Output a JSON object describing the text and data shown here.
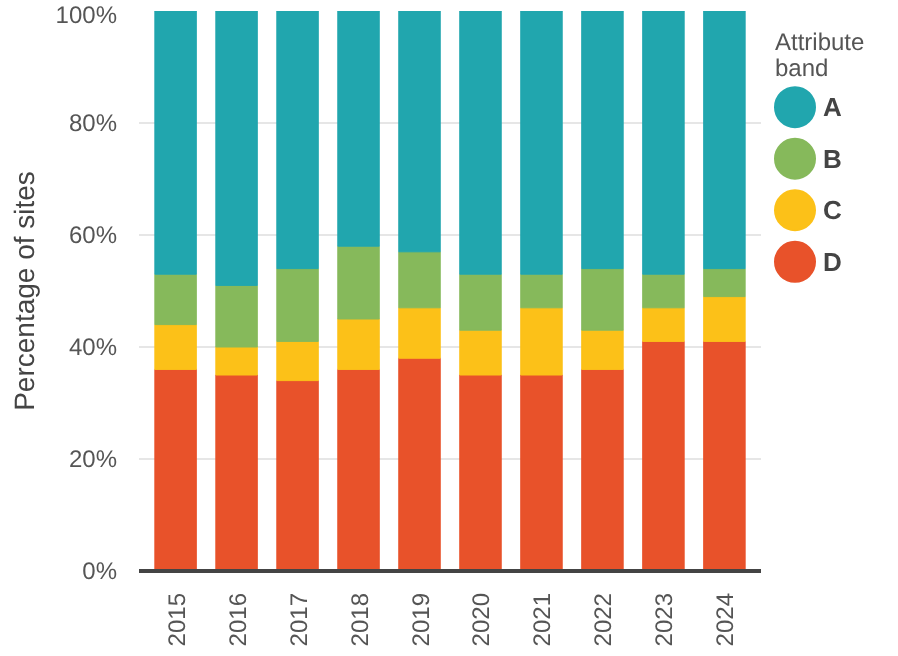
{
  "chart_data": {
    "type": "bar",
    "stacked": true,
    "ylabel": "Percentage of sites",
    "legend_title": "Attribute band",
    "legend": "top right",
    "grid": "y",
    "categories": [
      "2015",
      "2016",
      "2017",
      "2018",
      "2019",
      "2020",
      "2021",
      "2022",
      "2023",
      "2024"
    ],
    "ylim": [
      0,
      100
    ],
    "yticks": [
      {
        "value": 0,
        "label": "0%"
      },
      {
        "value": 20,
        "label": "20%"
      },
      {
        "value": 40,
        "label": "40%"
      },
      {
        "value": 60,
        "label": "60%"
      },
      {
        "value": 80,
        "label": "80%"
      },
      {
        "value": 100,
        "label": "100%"
      }
    ],
    "series": [
      {
        "name": "D",
        "color": "#e8522a",
        "values": [
          36,
          35,
          34,
          36,
          38,
          35,
          35,
          36,
          41,
          41
        ]
      },
      {
        "name": "C",
        "color": "#fcc118",
        "values": [
          8,
          5,
          7,
          9,
          9,
          8,
          12,
          7,
          6,
          8
        ]
      },
      {
        "name": "B",
        "color": "#86b95b",
        "values": [
          9,
          11,
          13,
          13,
          10,
          10,
          6,
          11,
          6,
          5
        ]
      },
      {
        "name": "A",
        "color": "#21a6ae",
        "values": [
          47,
          49,
          46,
          42,
          43,
          47,
          47,
          46,
          47,
          46
        ]
      }
    ]
  }
}
